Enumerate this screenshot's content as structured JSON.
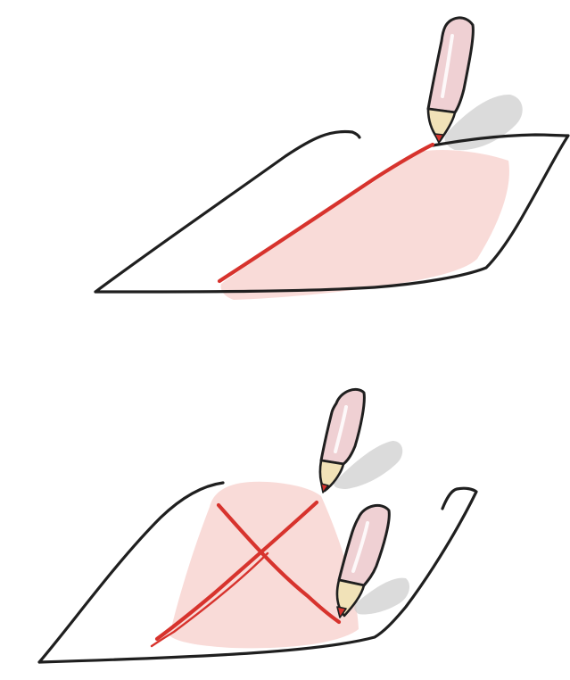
{
  "illustration": {
    "panels": [
      {
        "id": "top",
        "depicts": "single-line"
      },
      {
        "id": "bottom",
        "depicts": "crossed-lines"
      }
    ],
    "colors": {
      "outline": "#1f1f1f",
      "ink": "#d7332d",
      "wash": "#f8d7d4",
      "pencil_body": "#efd0d3",
      "pencil_wood": "#f1e2b8",
      "shadow": "#cfcfcf"
    },
    "icons": [
      "pencil-icon",
      "paper-sheet-icon"
    ]
  }
}
